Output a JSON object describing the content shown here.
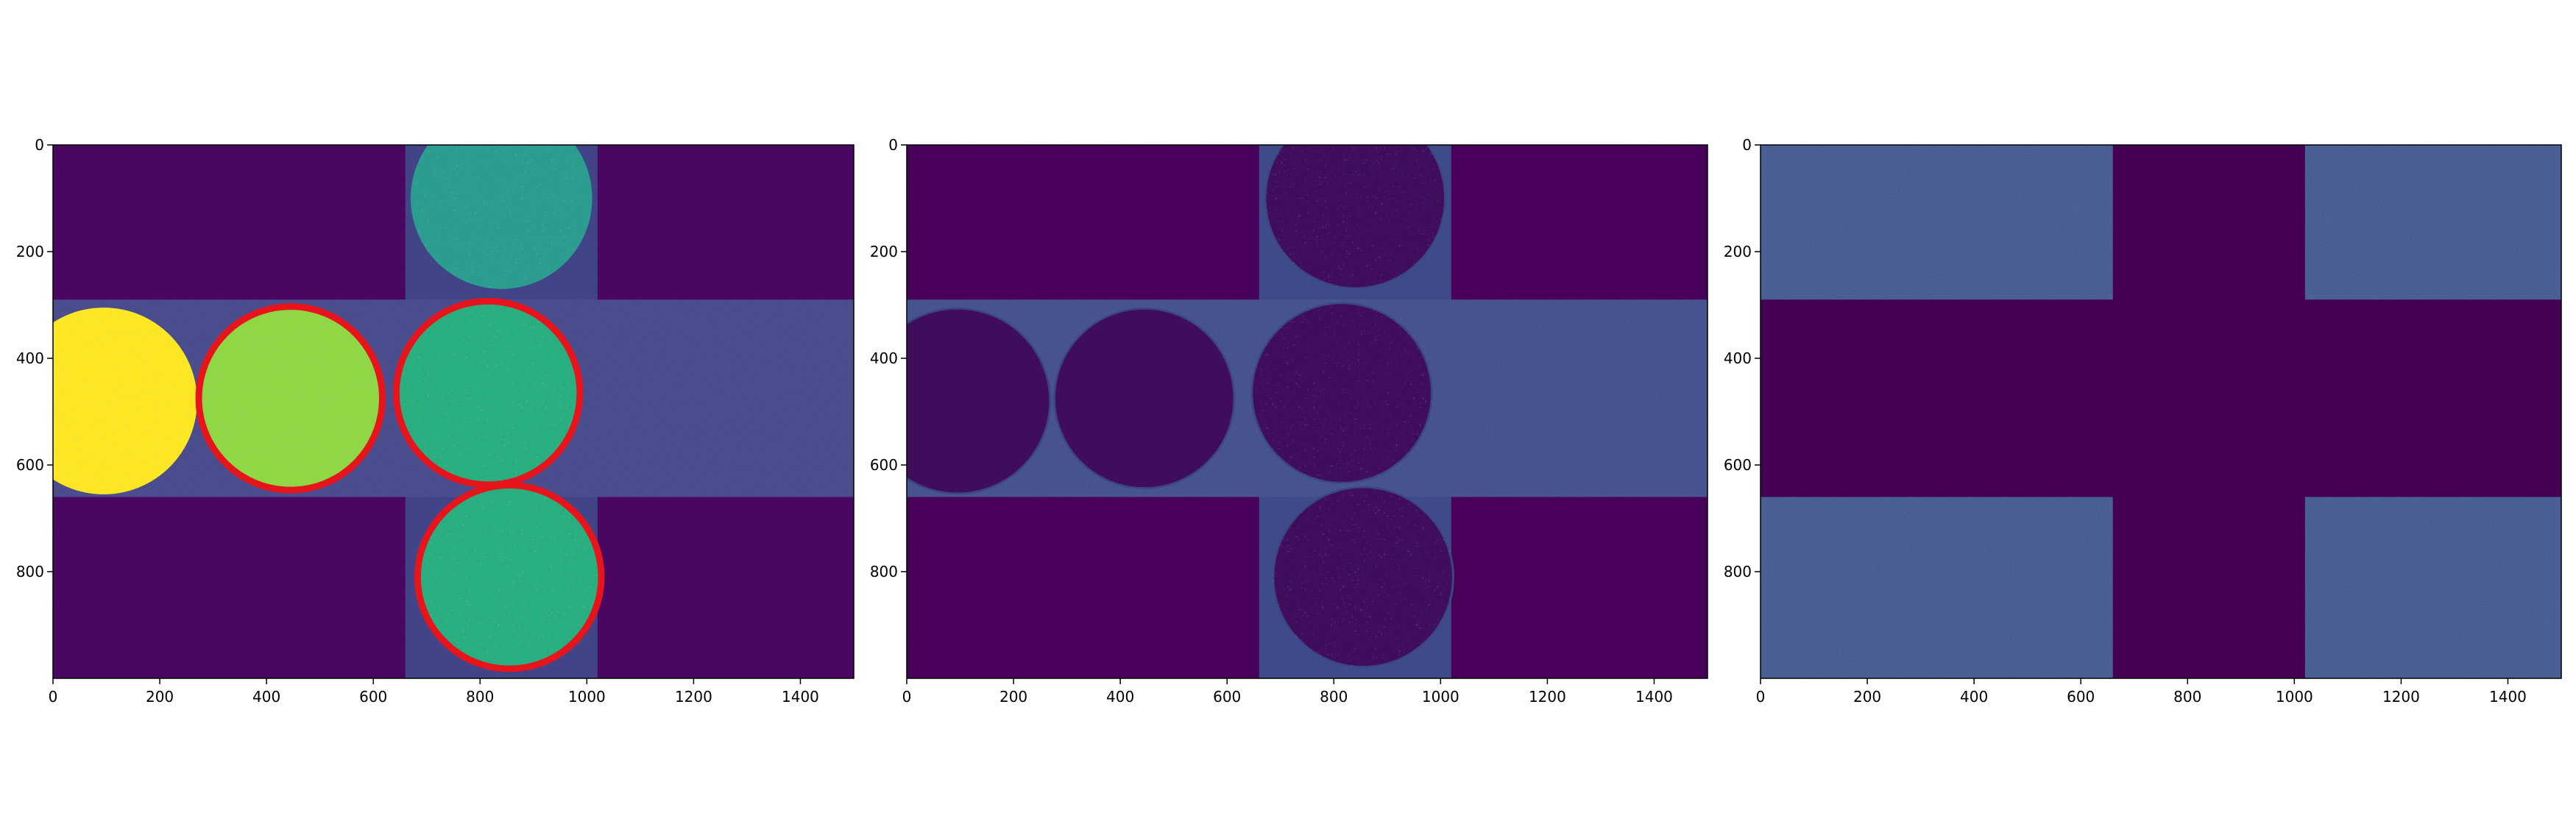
{
  "colors": {
    "viridis_dark": "#440154",
    "viridis_mid_blue": "#3b528b",
    "viridis_teal": "#21918c",
    "viridis_green": "#5ec962",
    "viridis_yellow": "#fde725",
    "circle_outline": "#e8141c"
  },
  "chart_data": [
    {
      "type": "heatmap",
      "colormap": "viridis",
      "xlim": [
        0,
        1500
      ],
      "ylim": [
        1000,
        0
      ],
      "x_ticks": [
        0,
        200,
        400,
        600,
        800,
        1000,
        1200,
        1400
      ],
      "y_ticks": [
        0,
        200,
        400,
        600,
        800
      ],
      "x_tick_labels": [
        "0",
        "200",
        "400",
        "600",
        "800",
        "1000",
        "1200",
        "1400"
      ],
      "y_tick_labels": [
        "0",
        "200",
        "400",
        "600",
        "800"
      ],
      "grid": false,
      "cross_region": {
        "x_range": [
          660,
          1020
        ],
        "y_range": [
          290,
          660
        ]
      },
      "circles": [
        {
          "cx": 95,
          "cy": 480,
          "r": 175,
          "level": "high"
        },
        {
          "cx": 445,
          "cy": 475,
          "r": 170,
          "level": "mid-high"
        },
        {
          "cx": 815,
          "cy": 465,
          "r": 170,
          "level": "mid"
        },
        {
          "cx": 840,
          "cy": 100,
          "r": 170,
          "level": "mid-low"
        },
        {
          "cx": 855,
          "cy": 810,
          "r": 170,
          "level": "mid"
        }
      ],
      "annotated_circles": [
        {
          "cx": 445,
          "cy": 475,
          "r": 172
        },
        {
          "cx": 815,
          "cy": 465,
          "r": 172
        },
        {
          "cx": 855,
          "cy": 810,
          "r": 172
        }
      ]
    },
    {
      "type": "heatmap",
      "colormap": "viridis",
      "xlim": [
        0,
        1500
      ],
      "ylim": [
        1000,
        0
      ],
      "x_ticks": [
        0,
        200,
        400,
        600,
        800,
        1000,
        1200,
        1400
      ],
      "y_ticks": [
        0,
        200,
        400,
        600,
        800
      ],
      "x_tick_labels": [
        "0",
        "200",
        "400",
        "600",
        "800",
        "1000",
        "1200",
        "1400"
      ],
      "y_tick_labels": [
        "0",
        "200",
        "400",
        "600",
        "800"
      ],
      "grid": false,
      "cross_region": {
        "x_range": [
          660,
          1020
        ],
        "y_range": [
          290,
          660
        ]
      },
      "circles": [
        {
          "cx": 95,
          "cy": 480,
          "r": 175
        },
        {
          "cx": 445,
          "cy": 475,
          "r": 170
        },
        {
          "cx": 815,
          "cy": 465,
          "r": 170
        },
        {
          "cx": 840,
          "cy": 100,
          "r": 170
        },
        {
          "cx": 855,
          "cy": 810,
          "r": 170
        }
      ]
    },
    {
      "type": "heatmap",
      "colormap": "viridis",
      "xlim": [
        0,
        1500
      ],
      "ylim": [
        1000,
        0
      ],
      "x_ticks": [
        0,
        200,
        400,
        600,
        800,
        1000,
        1200,
        1400
      ],
      "y_ticks": [
        0,
        200,
        400,
        600,
        800
      ],
      "x_tick_labels": [
        "0",
        "200",
        "400",
        "600",
        "800",
        "1000",
        "1200",
        "1400"
      ],
      "y_tick_labels": [
        "0",
        "200",
        "400",
        "600",
        "800"
      ],
      "grid": false,
      "cross_region": {
        "x_range": [
          660,
          1020
        ],
        "y_range": [
          290,
          660
        ]
      }
    }
  ]
}
